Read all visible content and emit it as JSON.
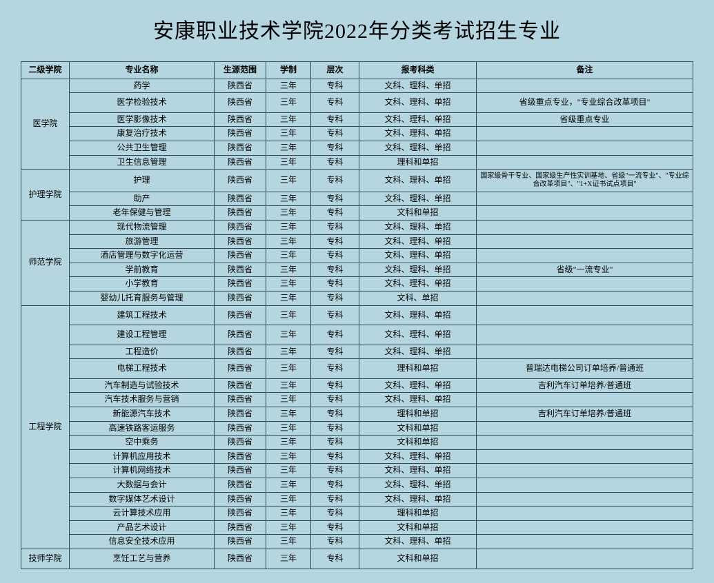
{
  "title": "安康职业技术学院2022年分类考试招生专业",
  "headers": {
    "college": "二级学院",
    "major": "专业名称",
    "source": "生源范围",
    "duration": "学制",
    "level": "层次",
    "category": "报考科类",
    "note": "备注"
  },
  "common": {
    "source": "陕西省",
    "duration": "三年",
    "level": "专科",
    "cat_wlk_dz": "文科、理科、单招",
    "cat_lk_dz": "理科和单招",
    "cat_wk_dz": "文科和单招",
    "cat_wk_dz2": "文科、单招"
  },
  "colleges": {
    "yxy": "医学院",
    "hlxy": "护理学院",
    "sfxy": "师范学院",
    "gcxy": "工程学院",
    "jsxy": "技师学院"
  },
  "majors": {
    "yx": "药学",
    "yxjy": "医学检验技术",
    "yxyy": "医学影像技术",
    "kfzl": "康复治疗技术",
    "ggws": "公共卫生管理",
    "wsxx": "卫生信息管理",
    "hl": "护理",
    "zc": "助产",
    "lnbj": "老年保健与管理",
    "xdwl": "现代物流管理",
    "lygl": "旅游管理",
    "jdgl": "酒店管理与数字化运营",
    "xqjy": "学前教育",
    "xxjy": "小学教育",
    "yyetg": "婴幼儿托育服务与管理",
    "jzgc": "建筑工程技术",
    "jsgc": "建设工程管理",
    "gczj": "工程造价",
    "dtgc": "电梯工程技术",
    "qczz": "汽车制造与试验技术",
    "qcjs": "汽车技术服务与营销",
    "xnyqc": "新能源汽车技术",
    "gstl": "高速铁路客运服务",
    "kzcw": "空中乘务",
    "jsjyy": "计算机应用技术",
    "jsjwl": "计算机网络技术",
    "dsj": "大数据与会计",
    "szmt": "数字媒体艺术设计",
    "yjs": "云计算技术应用",
    "cpys": "产品艺术设计",
    "xxaq": "信息安全技术应用",
    "prgy": "烹饪工艺与营养"
  },
  "notes": {
    "yxjy": "省级重点专业，\"专业综合改革项目\"",
    "yxyy": "省级重点专业",
    "hl": "国家级骨干专业、国家级生产性实训基地、省级\"一流专业\"、\"专业综合改革项目\"、\"1+X证书试点项目\"",
    "xqjy": "省级\"一流专业\"",
    "dtgc": "普瑞达电梯公司订单培养/普通班",
    "qczz": "吉利汽车订单培养/普通班",
    "xnyqc": "吉利汽车订单培养/普通班"
  }
}
